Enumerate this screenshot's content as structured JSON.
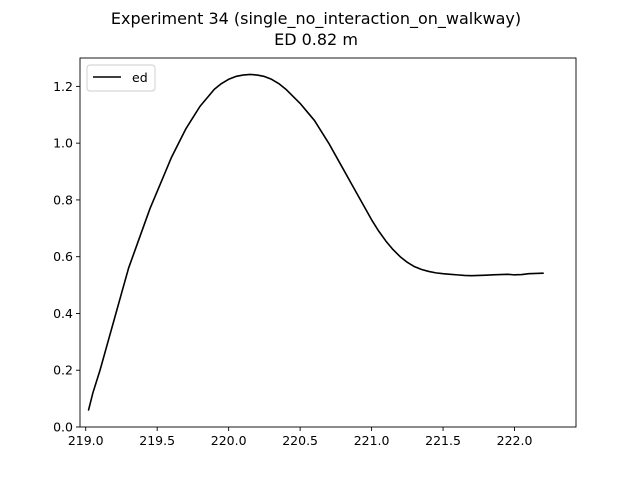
{
  "chart_data": {
    "type": "line",
    "title": "Experiment 34 (single_no_interaction_on_walkway)",
    "subtitle": "ED 0.82 m",
    "xlabel": "",
    "ylabel": "",
    "xlim": [
      218.96,
      222.43
    ],
    "ylim": [
      0.0,
      1.3
    ],
    "x_ticks": [
      219.0,
      219.5,
      220.0,
      220.5,
      221.0,
      221.5,
      222.0
    ],
    "x_tick_labels": [
      "219.0",
      "219.5",
      "220.0",
      "220.5",
      "221.0",
      "221.5",
      "222.0"
    ],
    "y_ticks": [
      0.0,
      0.2,
      0.4,
      0.6,
      0.8,
      1.0,
      1.2
    ],
    "y_tick_labels": [
      "0.0",
      "0.2",
      "0.4",
      "0.6",
      "0.8",
      "1.0",
      "1.2"
    ],
    "grid": false,
    "legend_position": "top-left",
    "series": [
      {
        "name": "ed",
        "color": "#000000",
        "x": [
          219.02,
          219.05,
          219.1,
          219.15,
          219.2,
          219.25,
          219.3,
          219.35,
          219.4,
          219.45,
          219.5,
          219.55,
          219.6,
          219.65,
          219.7,
          219.75,
          219.8,
          219.85,
          219.9,
          219.95,
          220.0,
          220.05,
          220.1,
          220.15,
          220.2,
          220.25,
          220.3,
          220.35,
          220.4,
          220.45,
          220.5,
          220.55,
          220.6,
          220.65,
          220.7,
          220.75,
          220.8,
          220.85,
          220.9,
          220.95,
          221.0,
          221.05,
          221.1,
          221.15,
          221.2,
          221.25,
          221.3,
          221.35,
          221.4,
          221.45,
          221.5,
          221.55,
          221.6,
          221.65,
          221.7,
          221.75,
          221.8,
          221.85,
          221.9,
          221.95,
          222.0,
          222.05,
          222.1,
          222.15,
          222.2
        ],
        "y": [
          0.06,
          0.12,
          0.2,
          0.29,
          0.38,
          0.47,
          0.56,
          0.63,
          0.7,
          0.77,
          0.83,
          0.89,
          0.95,
          1.0,
          1.05,
          1.09,
          1.13,
          1.16,
          1.19,
          1.21,
          1.225,
          1.235,
          1.24,
          1.242,
          1.24,
          1.235,
          1.225,
          1.21,
          1.19,
          1.165,
          1.14,
          1.11,
          1.08,
          1.04,
          1.0,
          0.955,
          0.91,
          0.865,
          0.82,
          0.775,
          0.73,
          0.69,
          0.655,
          0.625,
          0.6,
          0.58,
          0.565,
          0.555,
          0.548,
          0.543,
          0.54,
          0.538,
          0.536,
          0.534,
          0.533,
          0.534,
          0.535,
          0.536,
          0.537,
          0.538,
          0.536,
          0.537,
          0.54,
          0.541,
          0.542
        ]
      }
    ]
  }
}
